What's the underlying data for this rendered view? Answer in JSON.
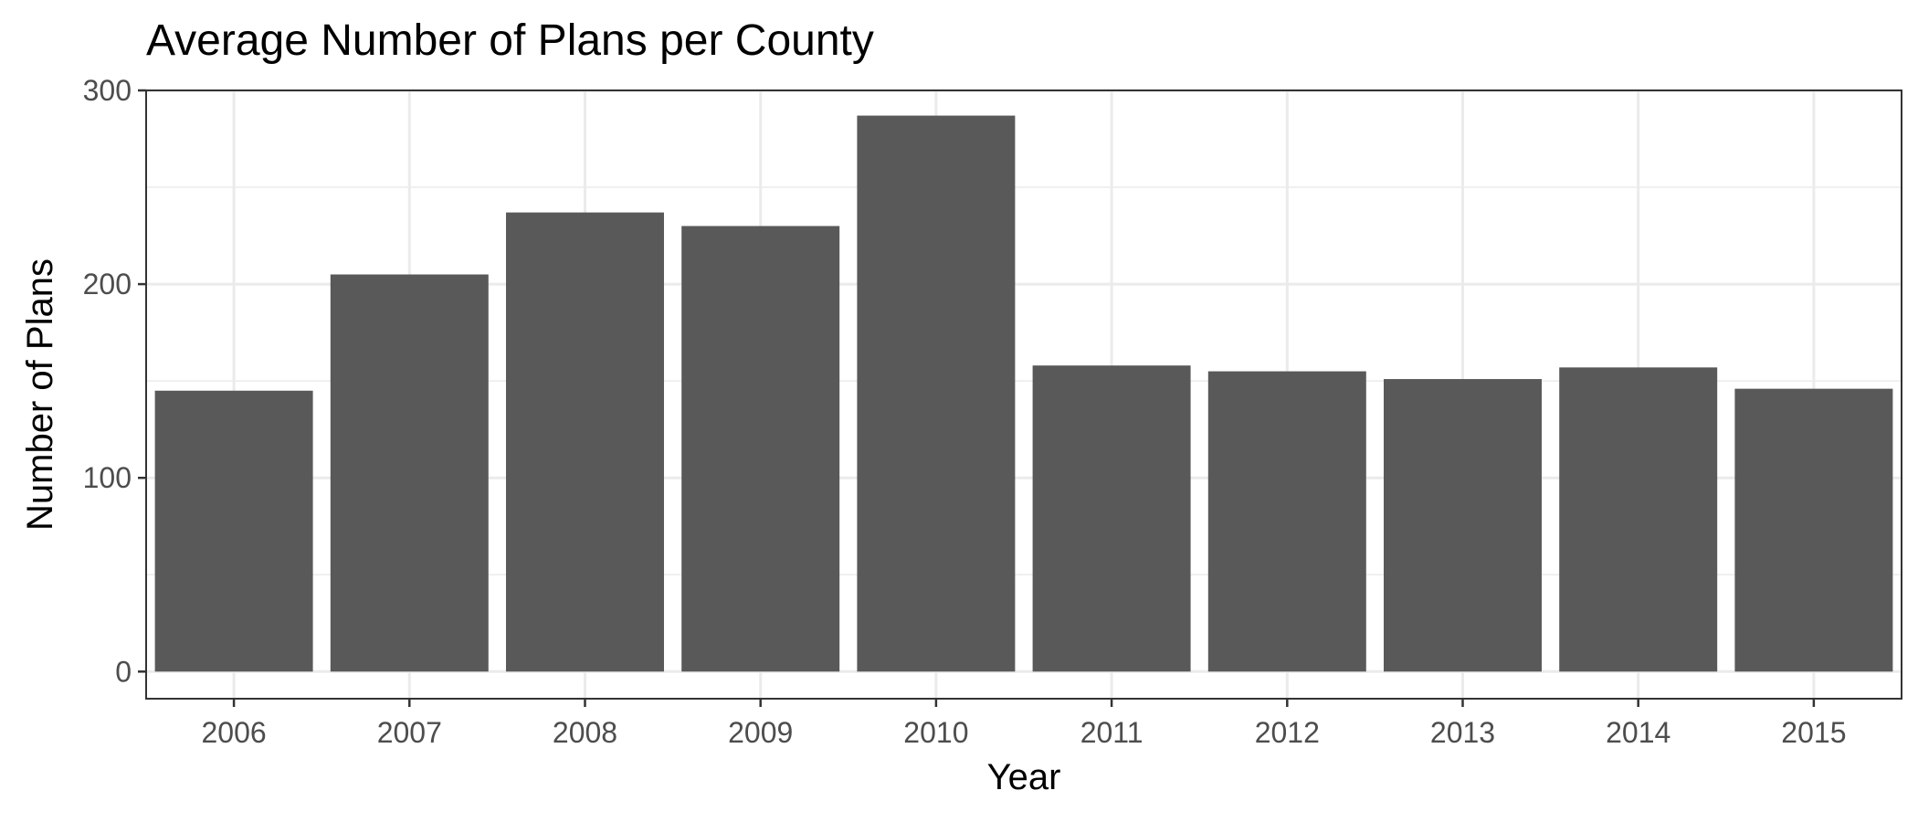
{
  "chart_data": {
    "type": "bar",
    "title": "Average Number of Plans per County",
    "xlabel": "Year",
    "ylabel": "Number of Plans",
    "categories": [
      "2006",
      "2007",
      "2008",
      "2009",
      "2010",
      "2011",
      "2012",
      "2013",
      "2014",
      "2015"
    ],
    "values": [
      145,
      205,
      237,
      230,
      287,
      158,
      155,
      151,
      157,
      146
    ],
    "ylim": [
      -14,
      300
    ],
    "yticks": [
      0,
      100,
      200,
      300
    ],
    "ytick_labels": [
      "0",
      "100",
      "200",
      "300"
    ],
    "grid": true,
    "legend": "none",
    "colors": {
      "bar": "#595959",
      "grid": "#ebebeb",
      "border": "#333333",
      "tick_label": "#4d4d4d"
    }
  }
}
